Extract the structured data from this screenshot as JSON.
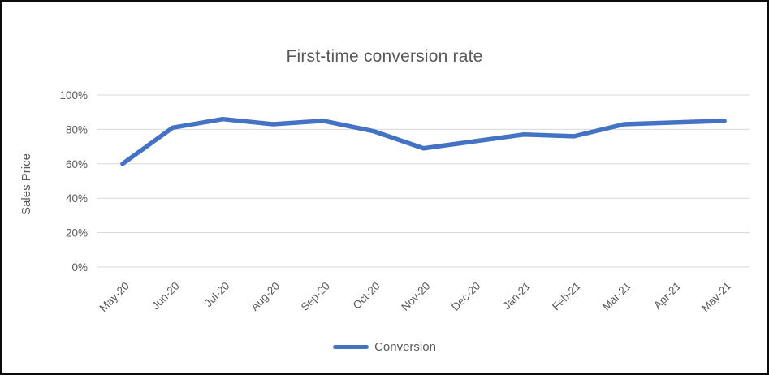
{
  "window": {
    "background": "#ffffff",
    "border_color": "#0b0b0b"
  },
  "chart": {
    "title": "First-time conversion rate",
    "y_axis_label": "Sales Price",
    "legend_label": "Conversion",
    "colors": {
      "line": "#4472C4",
      "title_text": "#595959",
      "axis_text": "#595959",
      "gridline": "#D9D9D9"
    }
  },
  "chart_data": {
    "type": "line",
    "title": "First-time conversion rate",
    "xlabel": "",
    "ylabel": "Sales Price",
    "categories": [
      "May-20",
      "Jun-20",
      "Jul-20",
      "Aug-20",
      "Sep-20",
      "Oct-20",
      "Nov-20",
      "Dec-20",
      "Jan-21",
      "Feb-21",
      "Mar-21",
      "Apr-21",
      "May-21"
    ],
    "series": [
      {
        "name": "Conversion",
        "values": [
          60,
          81,
          86,
          83,
          85,
          79,
          69,
          73,
          77,
          76,
          83,
          84,
          85
        ]
      }
    ],
    "ylim": [
      0,
      100
    ],
    "y_ticks": [
      "0%",
      "20%",
      "40%",
      "60%",
      "80%",
      "100%"
    ],
    "y_tick_format": "percent",
    "grid": true,
    "legend_position": "bottom",
    "x_label_rotation_deg": -45
  }
}
